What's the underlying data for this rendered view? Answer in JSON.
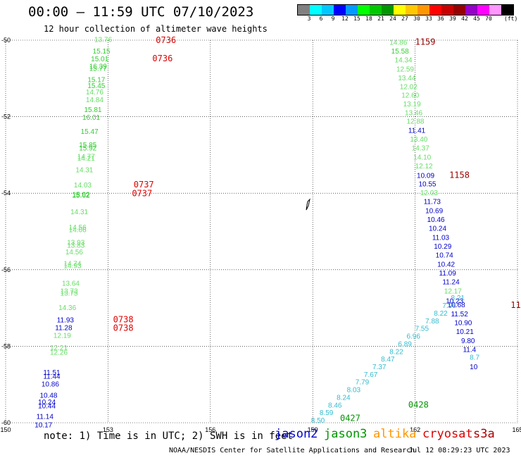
{
  "title": "00:00 – 11:59 UTC 07/10/2023",
  "subtitle": "12 hour collection of altimeter wave heights",
  "colorbar": {
    "colors": [
      "#808080",
      "#00ffff",
      "#00c8ff",
      "#0000ff",
      "#009bff",
      "#00ff00",
      "#00c800",
      "#009600",
      "#ffff00",
      "#ffc800",
      "#ff9600",
      "#ff0000",
      "#c80000",
      "#960000",
      "#9600c8",
      "#ff00ff",
      "#ff96ff",
      "#000000"
    ],
    "labels": [
      "3",
      "6",
      "9",
      "12",
      "15",
      "18",
      "21",
      "24",
      "27",
      "30",
      "33",
      "36",
      "39",
      "42",
      "45",
      "70"
    ],
    "unit": "(ft)"
  },
  "note": "note:  1) Time is in UTC; 2) SWH is in feet",
  "legend": [
    {
      "name": "jason2",
      "color": "#0000cc"
    },
    {
      "name": "jason3",
      "color": "#009600"
    },
    {
      "name": "altika",
      "color": "#ff9600"
    },
    {
      "name": "cryosat",
      "color": "#dd0000"
    },
    {
      "name": "s3a",
      "color": "#aa0000"
    }
  ],
  "credit": "NOAA/NESDIS Center for Satellite Applications and Research",
  "timestamp": "Jul 12 08:29:23 UTC 2023",
  "chart_data": {
    "type": "scatter",
    "xlim": [
      150,
      165
    ],
    "ylim": [
      -60,
      -50
    ],
    "x_ticks": [
      "150",
      "153",
      "156",
      "159",
      "162",
      "165"
    ],
    "y_ticks": [
      "-50",
      "-52",
      "-54",
      "-56",
      "-58",
      "-60"
    ],
    "grid": true,
    "time_labels": [
      {
        "text": "0736",
        "lon": 154.4,
        "lat": -50.07,
        "color": "#dd0000"
      },
      {
        "text": "0736",
        "lon": 154.3,
        "lat": -50.55,
        "color": "#dd0000"
      },
      {
        "text": "0737",
        "lon": 153.75,
        "lat": -53.85,
        "color": "#dd0000"
      },
      {
        "text": "0737",
        "lon": 153.7,
        "lat": -54.08,
        "color": "#dd0000"
      },
      {
        "text": "0738",
        "lon": 153.15,
        "lat": -57.38,
        "color": "#dd0000"
      },
      {
        "text": "0738",
        "lon": 153.15,
        "lat": -57.6,
        "color": "#dd0000"
      },
      {
        "text": "1159",
        "lon": 162.0,
        "lat": -50.12,
        "color": "#990000"
      },
      {
        "text": "1158",
        "lon": 163.0,
        "lat": -53.6,
        "color": "#990000"
      },
      {
        "text": "11",
        "lon": 164.8,
        "lat": -57.0,
        "color": "#990000"
      },
      {
        "text": "0428",
        "lon": 161.8,
        "lat": -59.6,
        "color": "#009600"
      },
      {
        "text": "0427",
        "lon": 159.8,
        "lat": -59.95,
        "color": "#009600"
      }
    ],
    "points": [
      {
        "text": "13.76",
        "lon": 152.6,
        "lat": -50.05,
        "color": "#66dd66"
      },
      {
        "text": "15.15",
        "lon": 152.55,
        "lat": -50.35,
        "color": "#33cc33"
      },
      {
        "text": "15.01",
        "lon": 152.5,
        "lat": -50.55,
        "color": "#33cc33"
      },
      {
        "text": "16.39",
        "lon": 152.45,
        "lat": -50.75,
        "color": "#33cc33"
      },
      {
        "text": "15.77",
        "lon": 152.45,
        "lat": -50.8,
        "color": "#33cc33"
      },
      {
        "text": "15.17",
        "lon": 152.4,
        "lat": -51.1,
        "color": "#33cc33"
      },
      {
        "text": "15.45",
        "lon": 152.4,
        "lat": -51.25,
        "color": "#33cc33"
      },
      {
        "text": "14.76",
        "lon": 152.35,
        "lat": -51.42,
        "color": "#66dd66"
      },
      {
        "text": "14.84",
        "lon": 152.35,
        "lat": -51.62,
        "color": "#66dd66"
      },
      {
        "text": "15.81",
        "lon": 152.3,
        "lat": -51.88,
        "color": "#33cc33"
      },
      {
        "text": "16.01",
        "lon": 152.25,
        "lat": -52.08,
        "color": "#33cc33"
      },
      {
        "text": "15.47",
        "lon": 152.2,
        "lat": -52.45,
        "color": "#33cc33"
      },
      {
        "text": "15.85",
        "lon": 152.15,
        "lat": -52.8,
        "color": "#33cc33"
      },
      {
        "text": "15.92",
        "lon": 152.15,
        "lat": -52.88,
        "color": "#33cc33"
      },
      {
        "text": "14.77",
        "lon": 152.1,
        "lat": -53.1,
        "color": "#66dd66"
      },
      {
        "text": "14.21",
        "lon": 152.1,
        "lat": -53.15,
        "color": "#66dd66"
      },
      {
        "text": "14.31",
        "lon": 152.05,
        "lat": -53.45,
        "color": "#66dd66"
      },
      {
        "text": "14.03",
        "lon": 152.0,
        "lat": -53.85,
        "color": "#66dd66"
      },
      {
        "text": "15.02",
        "lon": 151.95,
        "lat": -54.1,
        "color": "#33cc33"
      },
      {
        "text": "15.62",
        "lon": 151.95,
        "lat": -54.12,
        "color": "#33cc33"
      },
      {
        "text": "14.31",
        "lon": 151.9,
        "lat": -54.55,
        "color": "#66dd66"
      },
      {
        "text": "14.56",
        "lon": 151.85,
        "lat": -54.95,
        "color": "#66dd66"
      },
      {
        "text": "14.06",
        "lon": 151.85,
        "lat": -55.02,
        "color": "#66dd66"
      },
      {
        "text": "13.93",
        "lon": 151.8,
        "lat": -55.35,
        "color": "#66dd66"
      },
      {
        "text": "13.83",
        "lon": 151.8,
        "lat": -55.42,
        "color": "#66dd66"
      },
      {
        "text": "14.56",
        "lon": 151.75,
        "lat": -55.6,
        "color": "#66dd66"
      },
      {
        "text": "14.74",
        "lon": 151.7,
        "lat": -55.9,
        "color": "#66dd66"
      },
      {
        "text": "14.93",
        "lon": 151.7,
        "lat": -55.96,
        "color": "#66dd66"
      },
      {
        "text": "13.64",
        "lon": 151.65,
        "lat": -56.42,
        "color": "#66dd66"
      },
      {
        "text": "13.73",
        "lon": 151.6,
        "lat": -56.62,
        "color": "#66dd66"
      },
      {
        "text": "13.75",
        "lon": 151.6,
        "lat": -56.68,
        "color": "#66dd66"
      },
      {
        "text": "14.36",
        "lon": 151.55,
        "lat": -57.05,
        "color": "#66dd66"
      },
      {
        "text": "11.93",
        "lon": 151.5,
        "lat": -57.38,
        "color": "#0000cc"
      },
      {
        "text": "11.28",
        "lon": 151.45,
        "lat": -57.58,
        "color": "#0000cc"
      },
      {
        "text": "12.19",
        "lon": 151.4,
        "lat": -57.78,
        "color": "#66dd66"
      },
      {
        "text": "12.21",
        "lon": 151.3,
        "lat": -58.1,
        "color": "#66dd66"
      },
      {
        "text": "12.26",
        "lon": 151.3,
        "lat": -58.22,
        "color": "#66dd66"
      },
      {
        "text": "11.51",
        "lon": 151.1,
        "lat": -58.75,
        "color": "#0000cc"
      },
      {
        "text": "11.44",
        "lon": 151.1,
        "lat": -58.85,
        "color": "#0000cc"
      },
      {
        "text": "10.86",
        "lon": 151.05,
        "lat": -59.05,
        "color": "#0000cc"
      },
      {
        "text": "10.48",
        "lon": 151.0,
        "lat": -59.35,
        "color": "#0000cc"
      },
      {
        "text": "10.24",
        "lon": 150.95,
        "lat": -59.52,
        "color": "#0000cc"
      },
      {
        "text": "10.44",
        "lon": 150.95,
        "lat": -59.62,
        "color": "#0000cc"
      },
      {
        "text": "11.14",
        "lon": 150.9,
        "lat": -59.9,
        "color": "#0000cc"
      },
      {
        "text": "10.17",
        "lon": 150.85,
        "lat": -60.12,
        "color": "#0000cc"
      },
      {
        "text": "14.86",
        "lon": 161.25,
        "lat": -50.12,
        "color": "#66dd66"
      },
      {
        "text": "15.58",
        "lon": 161.3,
        "lat": -50.35,
        "color": "#33cc33"
      },
      {
        "text": "14.34",
        "lon": 161.4,
        "lat": -50.58,
        "color": "#66dd66"
      },
      {
        "text": "12.59",
        "lon": 161.45,
        "lat": -50.82,
        "color": "#66dd66"
      },
      {
        "text": "13.44",
        "lon": 161.5,
        "lat": -51.05,
        "color": "#66dd66"
      },
      {
        "text": "12.02",
        "lon": 161.55,
        "lat": -51.28,
        "color": "#66dd66"
      },
      {
        "text": "12.60",
        "lon": 161.6,
        "lat": -51.5,
        "color": "#66dd66"
      },
      {
        "text": "13.19",
        "lon": 161.65,
        "lat": -51.73,
        "color": "#66dd66"
      },
      {
        "text": "13.46",
        "lon": 161.7,
        "lat": -51.96,
        "color": "#66dd66"
      },
      {
        "text": "12.88",
        "lon": 161.75,
        "lat": -52.18,
        "color": "#66dd66"
      },
      {
        "text": "11.41",
        "lon": 161.8,
        "lat": -52.42,
        "color": "#0000cc"
      },
      {
        "text": "13.40",
        "lon": 161.85,
        "lat": -52.65,
        "color": "#66dd66"
      },
      {
        "text": "14.37",
        "lon": 161.9,
        "lat": -52.88,
        "color": "#66dd66"
      },
      {
        "text": "14.10",
        "lon": 161.95,
        "lat": -53.12,
        "color": "#66dd66"
      },
      {
        "text": "12.12",
        "lon": 162.0,
        "lat": -53.35,
        "color": "#66dd66"
      },
      {
        "text": "10.09",
        "lon": 162.05,
        "lat": -53.6,
        "color": "#0000cc"
      },
      {
        "text": "10.55",
        "lon": 162.1,
        "lat": -53.82,
        "color": "#0000cc"
      },
      {
        "text": "12.03",
        "lon": 162.15,
        "lat": -54.05,
        "color": "#66dd66"
      },
      {
        "text": "11.73",
        "lon": 162.25,
        "lat": -54.28,
        "color": "#0000cc"
      },
      {
        "text": "10.69",
        "lon": 162.3,
        "lat": -54.52,
        "color": "#0000cc"
      },
      {
        "text": "10.46",
        "lon": 162.35,
        "lat": -54.75,
        "color": "#0000cc"
      },
      {
        "text": "10.24",
        "lon": 162.4,
        "lat": -54.98,
        "color": "#0000cc"
      },
      {
        "text": "11.03",
        "lon": 162.5,
        "lat": -55.22,
        "color": "#0000cc"
      },
      {
        "text": "10.29",
        "lon": 162.55,
        "lat": -55.45,
        "color": "#0000cc"
      },
      {
        "text": "10.74",
        "lon": 162.6,
        "lat": -55.68,
        "color": "#0000cc"
      },
      {
        "text": "10.42",
        "lon": 162.65,
        "lat": -55.92,
        "color": "#0000cc"
      },
      {
        "text": "11.09",
        "lon": 162.7,
        "lat": -56.15,
        "color": "#0000cc"
      },
      {
        "text": "11.24",
        "lon": 162.8,
        "lat": -56.38,
        "color": "#0000cc"
      },
      {
        "text": "12.17",
        "lon": 162.85,
        "lat": -56.62,
        "color": "#66dd66"
      },
      {
        "text": "10.23",
        "lon": 162.9,
        "lat": -56.88,
        "color": "#0000cc"
      },
      {
        "text": "10.68",
        "lon": 162.95,
        "lat": -56.98,
        "color": "#0000cc"
      },
      {
        "text": "11.52",
        "lon": 163.05,
        "lat": -57.22,
        "color": "#0000cc"
      },
      {
        "text": "10.90",
        "lon": 163.15,
        "lat": -57.45,
        "color": "#0000cc"
      },
      {
        "text": "10.21",
        "lon": 163.2,
        "lat": -57.68,
        "color": "#0000cc"
      },
      {
        "text": "9.80",
        "lon": 163.35,
        "lat": -57.92,
        "color": "#0000cc"
      },
      {
        "text": "11.4",
        "lon": 163.4,
        "lat": -58.15,
        "color": "#0000cc"
      },
      {
        "text": "10",
        "lon": 163.6,
        "lat": -58.6,
        "color": "#0000cc"
      },
      {
        "text": "8.50",
        "lon": 158.95,
        "lat": -60.0,
        "color": "#33bbcc"
      },
      {
        "text": "8.59",
        "lon": 159.2,
        "lat": -59.8,
        "color": "#33bbcc"
      },
      {
        "text": "8.46",
        "lon": 159.45,
        "lat": -59.6,
        "color": "#33bbcc"
      },
      {
        "text": "8.24",
        "lon": 159.7,
        "lat": -59.4,
        "color": "#33bbcc"
      },
      {
        "text": "8.03",
        "lon": 160.0,
        "lat": -59.2,
        "color": "#33bbcc"
      },
      {
        "text": "7.79",
        "lon": 160.25,
        "lat": -59.0,
        "color": "#33bbcc"
      },
      {
        "text": "7.67",
        "lon": 160.5,
        "lat": -58.8,
        "color": "#33bbcc"
      },
      {
        "text": "7.37",
        "lon": 160.75,
        "lat": -58.6,
        "color": "#33bbcc"
      },
      {
        "text": "8.47",
        "lon": 161.0,
        "lat": -58.4,
        "color": "#33bbcc"
      },
      {
        "text": "8.22",
        "lon": 161.25,
        "lat": -58.2,
        "color": "#33bbcc"
      },
      {
        "text": "6.89",
        "lon": 161.5,
        "lat": -58.0,
        "color": "#33bbcc"
      },
      {
        "text": "6.96",
        "lon": 161.75,
        "lat": -57.8,
        "color": "#33bbcc"
      },
      {
        "text": "7.55",
        "lon": 162.0,
        "lat": -57.6,
        "color": "#33bbcc"
      },
      {
        "text": "7.88",
        "lon": 162.3,
        "lat": -57.4,
        "color": "#33bbcc"
      },
      {
        "text": "8.22",
        "lon": 162.55,
        "lat": -57.2,
        "color": "#33bbcc"
      },
      {
        "text": "7.96",
        "lon": 162.8,
        "lat": -57.0,
        "color": "#33bbcc"
      },
      {
        "text": "8.21",
        "lon": 163.05,
        "lat": -56.8,
        "color": "#33bbcc"
      },
      {
        "text": "8.7",
        "lon": 163.6,
        "lat": -58.35,
        "color": "#33bbcc"
      }
    ]
  }
}
